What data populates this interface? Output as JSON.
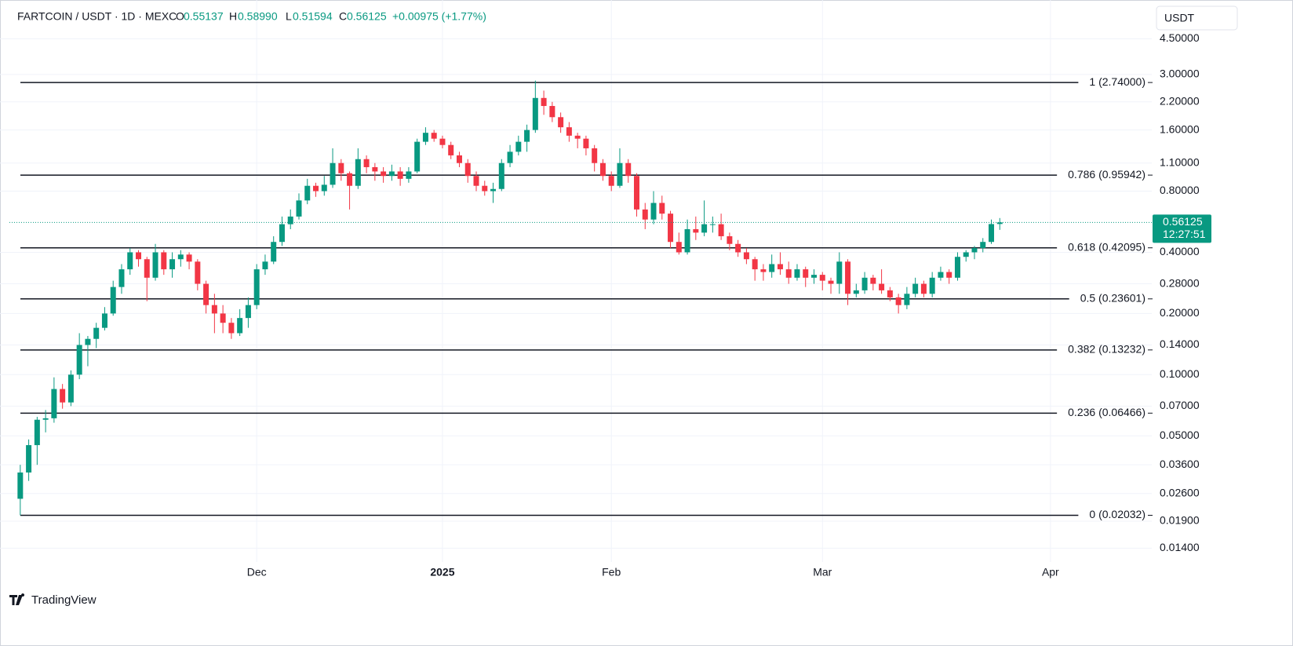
{
  "header": {
    "symbol": "FARTCOIN / USDT · 1D · MEXC",
    "o_key": "O",
    "o": "0.55137",
    "h_key": "H",
    "h": "0.58990",
    "l_key": "L",
    "l": "0.51594",
    "c_key": "C",
    "c": "0.56125",
    "change": "+0.00975 (+1.77%)",
    "currency": "USDT",
    "brand": "TradingView"
  },
  "chart_data": {
    "type": "candlestick",
    "log_scale": true,
    "grid": true,
    "up_color": "#089981",
    "down_color": "#f23645",
    "ylim": [
      0.0124,
      6.5
    ],
    "xlim": [
      -2.4,
      134
    ],
    "yticks": [
      {
        "value": 4.5,
        "label": "4.50000"
      },
      {
        "value": 3,
        "label": "3.00000"
      },
      {
        "value": 2.2,
        "label": "2.20000"
      },
      {
        "value": 1.6,
        "label": "1.60000"
      },
      {
        "value": 1.1,
        "label": "1.10000"
      },
      {
        "value": 0.8,
        "label": "0.80000"
      },
      {
        "value": 0.4,
        "label": "0.40000"
      },
      {
        "value": 0.28,
        "label": "0.28000"
      },
      {
        "value": 0.2,
        "label": "0.20000"
      },
      {
        "value": 0.14,
        "label": "0.14000"
      },
      {
        "value": 0.1,
        "label": "0.10000"
      },
      {
        "value": 0.07,
        "label": "0.07000"
      },
      {
        "value": 0.05,
        "label": "0.05000"
      },
      {
        "value": 0.036,
        "label": "0.03600"
      },
      {
        "value": 0.026,
        "label": "0.02600"
      },
      {
        "value": 0.019,
        "label": "0.01900"
      },
      {
        "value": 0.014,
        "label": "0.01400"
      }
    ],
    "xticks": [
      {
        "value": 28,
        "label": "Dec"
      },
      {
        "value": 50,
        "label": "2025",
        "bold": true
      },
      {
        "value": 70,
        "label": "Feb"
      },
      {
        "value": 95,
        "label": "Mar"
      },
      {
        "value": 122,
        "label": "Apr"
      }
    ],
    "fib_levels": [
      {
        "value": 2.74,
        "label": "1 (2.74000)"
      },
      {
        "value": 0.95942,
        "label": "0.786 (0.95942)"
      },
      {
        "value": 0.42095,
        "label": "0.618 (0.42095)"
      },
      {
        "value": 0.23601,
        "label": "0.5 (0.23601)"
      },
      {
        "value": 0.13232,
        "label": "0.382 (0.13232)"
      },
      {
        "value": 0.06466,
        "label": "0.236 (0.06466)"
      },
      {
        "value": 0.02032,
        "label": "0 (0.02032)"
      }
    ],
    "last_price": {
      "value": 0.56125,
      "label": "0.56125",
      "countdown": "12:27:51"
    },
    "candles": [
      [
        0.0245,
        0.036,
        0.0203,
        0.033
      ],
      [
        0.033,
        0.048,
        0.03,
        0.045
      ],
      [
        0.045,
        0.062,
        0.036,
        0.06
      ],
      [
        0.06,
        0.067,
        0.052,
        0.061
      ],
      [
        0.061,
        0.097,
        0.058,
        0.085
      ],
      [
        0.085,
        0.09,
        0.068,
        0.073
      ],
      [
        0.073,
        0.105,
        0.07,
        0.1
      ],
      [
        0.1,
        0.16,
        0.095,
        0.14
      ],
      [
        0.14,
        0.155,
        0.11,
        0.15
      ],
      [
        0.15,
        0.18,
        0.135,
        0.17
      ],
      [
        0.17,
        0.215,
        0.165,
        0.2
      ],
      [
        0.2,
        0.29,
        0.195,
        0.27
      ],
      [
        0.27,
        0.35,
        0.25,
        0.33
      ],
      [
        0.33,
        0.42,
        0.31,
        0.4
      ],
      [
        0.4,
        0.41,
        0.34,
        0.37
      ],
      [
        0.37,
        0.38,
        0.23,
        0.3
      ],
      [
        0.3,
        0.44,
        0.29,
        0.4
      ],
      [
        0.4,
        0.41,
        0.31,
        0.33
      ],
      [
        0.33,
        0.4,
        0.3,
        0.37
      ],
      [
        0.37,
        0.41,
        0.34,
        0.39
      ],
      [
        0.39,
        0.4,
        0.33,
        0.36
      ],
      [
        0.36,
        0.37,
        0.26,
        0.28
      ],
      [
        0.28,
        0.29,
        0.2,
        0.22
      ],
      [
        0.22,
        0.25,
        0.16,
        0.2
      ],
      [
        0.2,
        0.22,
        0.16,
        0.18
      ],
      [
        0.18,
        0.19,
        0.15,
        0.16
      ],
      [
        0.16,
        0.21,
        0.155,
        0.19
      ],
      [
        0.19,
        0.24,
        0.17,
        0.22
      ],
      [
        0.22,
        0.35,
        0.21,
        0.33
      ],
      [
        0.33,
        0.39,
        0.31,
        0.36
      ],
      [
        0.36,
        0.48,
        0.35,
        0.45
      ],
      [
        0.45,
        0.6,
        0.43,
        0.55
      ],
      [
        0.55,
        0.65,
        0.52,
        0.6
      ],
      [
        0.6,
        0.78,
        0.58,
        0.72
      ],
      [
        0.72,
        0.92,
        0.69,
        0.85
      ],
      [
        0.85,
        0.88,
        0.75,
        0.8
      ],
      [
        0.8,
        0.95,
        0.76,
        0.86
      ],
      [
        0.86,
        1.3,
        0.83,
        1.1
      ],
      [
        1.1,
        1.15,
        0.9,
        0.98
      ],
      [
        0.98,
        1.0,
        0.65,
        0.85
      ],
      [
        0.85,
        1.3,
        0.82,
        1.15
      ],
      [
        1.15,
        1.2,
        0.98,
        1.05
      ],
      [
        1.05,
        1.1,
        0.9,
        1.0
      ],
      [
        1.0,
        1.05,
        0.88,
        0.95
      ],
      [
        0.95,
        1.08,
        0.9,
        1.0
      ],
      [
        1.0,
        1.05,
        0.85,
        0.92
      ],
      [
        0.92,
        1.05,
        0.88,
        1.0
      ],
      [
        1.0,
        1.45,
        0.98,
        1.4
      ],
      [
        1.4,
        1.65,
        1.35,
        1.55
      ],
      [
        1.55,
        1.6,
        1.4,
        1.45
      ],
      [
        1.45,
        1.5,
        1.3,
        1.35
      ],
      [
        1.35,
        1.4,
        1.15,
        1.2
      ],
      [
        1.2,
        1.25,
        1.05,
        1.1
      ],
      [
        1.1,
        1.15,
        0.88,
        0.95
      ],
      [
        0.95,
        1.0,
        0.8,
        0.85
      ],
      [
        0.85,
        0.9,
        0.76,
        0.8
      ],
      [
        0.8,
        0.88,
        0.7,
        0.82
      ],
      [
        0.82,
        1.15,
        0.8,
        1.1
      ],
      [
        1.1,
        1.35,
        1.05,
        1.25
      ],
      [
        1.25,
        1.5,
        1.2,
        1.4
      ],
      [
        1.4,
        1.7,
        1.25,
        1.6
      ],
      [
        1.6,
        2.8,
        1.55,
        2.3
      ],
      [
        2.3,
        2.5,
        1.9,
        2.1
      ],
      [
        2.1,
        2.2,
        1.75,
        1.85
      ],
      [
        1.85,
        1.95,
        1.55,
        1.65
      ],
      [
        1.65,
        1.75,
        1.4,
        1.5
      ],
      [
        1.5,
        1.55,
        1.3,
        1.45
      ],
      [
        1.45,
        1.5,
        1.2,
        1.3
      ],
      [
        1.3,
        1.35,
        1.0,
        1.1
      ],
      [
        1.1,
        1.15,
        0.9,
        0.95
      ],
      [
        0.95,
        1.0,
        0.8,
        0.85
      ],
      [
        0.85,
        1.3,
        0.83,
        1.1
      ],
      [
        1.1,
        1.15,
        0.88,
        0.95
      ],
      [
        0.95,
        0.98,
        0.6,
        0.65
      ],
      [
        0.65,
        0.7,
        0.52,
        0.58
      ],
      [
        0.58,
        0.8,
        0.55,
        0.7
      ],
      [
        0.7,
        0.76,
        0.58,
        0.62
      ],
      [
        0.62,
        0.64,
        0.42,
        0.45
      ],
      [
        0.45,
        0.5,
        0.39,
        0.4
      ],
      [
        0.4,
        0.58,
        0.39,
        0.52
      ],
      [
        0.52,
        0.6,
        0.46,
        0.5
      ],
      [
        0.5,
        0.72,
        0.48,
        0.55
      ],
      [
        0.55,
        0.6,
        0.5,
        0.55
      ],
      [
        0.55,
        0.62,
        0.46,
        0.48
      ],
      [
        0.48,
        0.5,
        0.41,
        0.44
      ],
      [
        0.44,
        0.46,
        0.38,
        0.4
      ],
      [
        0.4,
        0.42,
        0.35,
        0.37
      ],
      [
        0.37,
        0.38,
        0.29,
        0.33
      ],
      [
        0.33,
        0.35,
        0.29,
        0.32
      ],
      [
        0.32,
        0.39,
        0.3,
        0.35
      ],
      [
        0.35,
        0.4,
        0.31,
        0.33
      ],
      [
        0.33,
        0.36,
        0.28,
        0.3
      ],
      [
        0.3,
        0.35,
        0.29,
        0.33
      ],
      [
        0.33,
        0.34,
        0.27,
        0.3
      ],
      [
        0.3,
        0.33,
        0.28,
        0.31
      ],
      [
        0.31,
        0.32,
        0.26,
        0.29
      ],
      [
        0.29,
        0.3,
        0.25,
        0.28
      ],
      [
        0.28,
        0.4,
        0.25,
        0.36
      ],
      [
        0.36,
        0.37,
        0.22,
        0.25
      ],
      [
        0.25,
        0.28,
        0.24,
        0.26
      ],
      [
        0.26,
        0.32,
        0.25,
        0.3
      ],
      [
        0.3,
        0.31,
        0.26,
        0.28
      ],
      [
        0.28,
        0.33,
        0.25,
        0.26
      ],
      [
        0.26,
        0.27,
        0.23,
        0.24
      ],
      [
        0.24,
        0.25,
        0.2,
        0.22
      ],
      [
        0.22,
        0.27,
        0.21,
        0.25
      ],
      [
        0.25,
        0.3,
        0.24,
        0.28
      ],
      [
        0.28,
        0.29,
        0.24,
        0.25
      ],
      [
        0.25,
        0.32,
        0.24,
        0.3
      ],
      [
        0.3,
        0.34,
        0.29,
        0.32
      ],
      [
        0.32,
        0.33,
        0.28,
        0.3
      ],
      [
        0.3,
        0.4,
        0.29,
        0.38
      ],
      [
        0.38,
        0.41,
        0.36,
        0.4
      ],
      [
        0.4,
        0.43,
        0.37,
        0.42
      ],
      [
        0.42,
        0.47,
        0.4,
        0.45
      ],
      [
        0.45,
        0.58,
        0.44,
        0.551
      ],
      [
        0.55137,
        0.5899,
        0.51594,
        0.56125
      ]
    ]
  }
}
